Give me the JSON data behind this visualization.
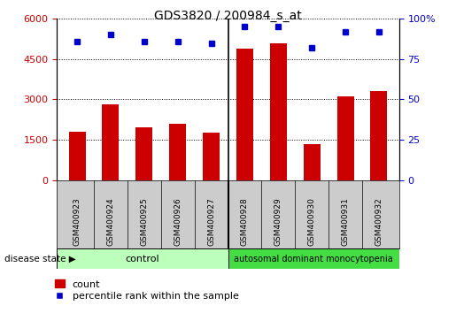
{
  "title": "GDS3820 / 200984_s_at",
  "samples": [
    "GSM400923",
    "GSM400924",
    "GSM400925",
    "GSM400926",
    "GSM400927",
    "GSM400928",
    "GSM400929",
    "GSM400930",
    "GSM400931",
    "GSM400932"
  ],
  "counts": [
    1800,
    2800,
    1950,
    2100,
    1750,
    4900,
    5100,
    1350,
    3100,
    3300
  ],
  "percentile_ranks": [
    86,
    90,
    86,
    86,
    85,
    95,
    95,
    82,
    92,
    92
  ],
  "bar_color": "#cc0000",
  "dot_color": "#0000cc",
  "left_ylim": [
    0,
    6000
  ],
  "right_ylim": [
    0,
    100
  ],
  "left_yticks": [
    0,
    1500,
    3000,
    4500,
    6000
  ],
  "right_yticks": [
    0,
    25,
    50,
    75,
    100
  ],
  "left_tick_color": "#cc0000",
  "right_tick_color": "#0000cc",
  "n_control": 5,
  "n_disease": 5,
  "control_label": "control",
  "disease_label": "autosomal dominant monocytopenia",
  "disease_state_label": "disease state",
  "control_color": "#bbffbb",
  "disease_color": "#44dd44",
  "xlabels_bg": "#cccccc",
  "legend_count_label": "count",
  "legend_percentile_label": "percentile rank within the sample",
  "bar_width": 0.5
}
